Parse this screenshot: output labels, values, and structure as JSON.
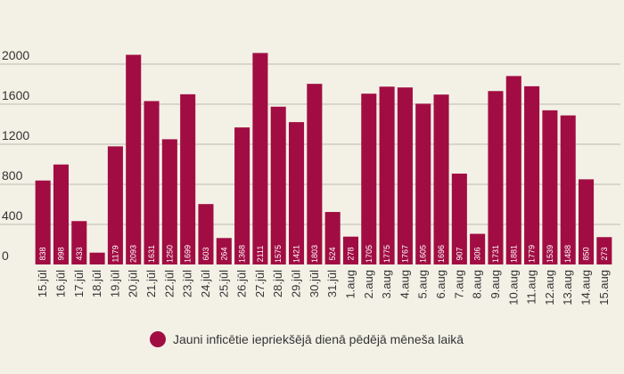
{
  "chart_data": {
    "type": "bar",
    "categories": [
      "15.jūl",
      "16.jūl",
      "17.jūl",
      "18.jūl",
      "19.jūl",
      "20.jūl",
      "21.jūl",
      "22.jūl",
      "23.jūl",
      "24.jūl",
      "25.jūl",
      "26.jūl",
      "27.jūl",
      "28.jūl",
      "29.jūl",
      "30.jūl",
      "31.jūl",
      "1.aug",
      "2.aug",
      "3.aug",
      "4.aug",
      "5.aug",
      "6.aug",
      "7.aug",
      "8.aug",
      "9.aug",
      "10.aug",
      "11.aug",
      "12.aug",
      "13.aug",
      "14.aug",
      "15.aug"
    ],
    "values": [
      838,
      998,
      433,
      118,
      1179,
      2093,
      1631,
      1250,
      1699,
      603,
      264,
      1368,
      2111,
      1575,
      1421,
      1803,
      524,
      278,
      1705,
      1775,
      1767,
      1605,
      1696,
      907,
      306,
      1731,
      1881,
      1779,
      1539,
      1488,
      850,
      273
    ],
    "value_labels": [
      "838",
      "998",
      "433",
      "",
      "1179",
      "2093",
      "1631",
      "1250",
      "1699",
      "603",
      "264",
      "1368",
      "2111",
      "1575",
      "1421",
      "1803",
      "524",
      "278",
      "1705",
      "1775",
      "1767",
      "1605",
      "1696",
      "907",
      "306",
      "1731",
      "1881",
      "1779",
      "1539",
      "1488",
      "850",
      "273"
    ],
    "ylim": [
      0,
      2400
    ],
    "yticks": [
      0,
      400,
      800,
      1200,
      1600,
      2000
    ],
    "grid": true,
    "bar_color": "#a10d43",
    "legend_position": "bottom",
    "series": [
      {
        "name": "Jauni inficētie iepriekšējā dienā pēdējā mēneša laikā",
        "color": "#a10d43"
      }
    ]
  }
}
